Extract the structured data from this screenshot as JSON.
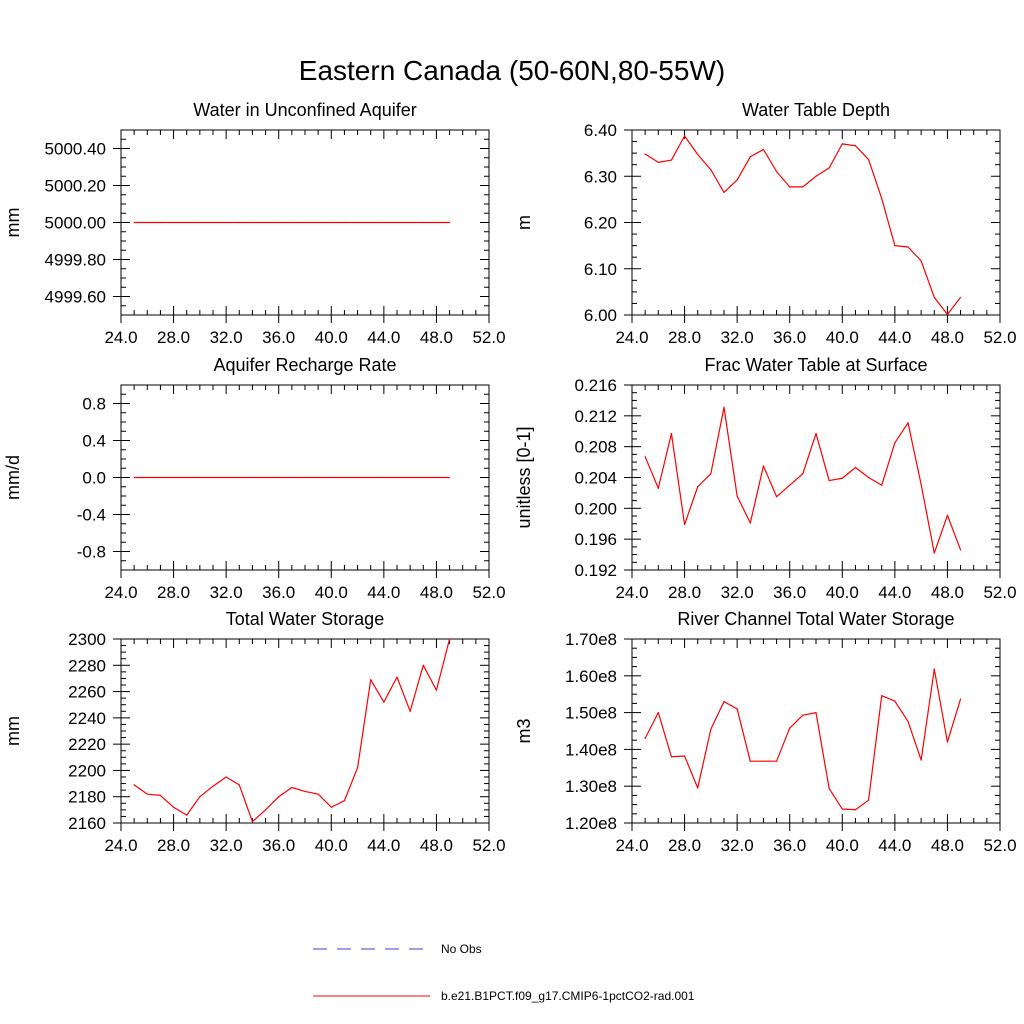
{
  "figure_title": "Eastern Canada (50-60N,80-55W)",
  "legend": {
    "entries": [
      {
        "label": "No Obs",
        "color": "#3b3bd6",
        "style": "dashed"
      },
      {
        "label": "b.e21.B1PCT.f09_g17.CMIP6-1pctCO2-rad.001",
        "color": "#ff0000",
        "style": "solid"
      }
    ]
  },
  "chart_data": [
    {
      "type": "line",
      "title": "Water in Unconfined Aquifer",
      "ylabel": "mm",
      "xlim": [
        24,
        52
      ],
      "ylim": [
        4999.5,
        5000.5
      ],
      "xticks": [
        24,
        28,
        32,
        36,
        40,
        44,
        48,
        52
      ],
      "xtick_labels": [
        "24.0",
        "28.0",
        "32.0",
        "36.0",
        "40.0",
        "44.0",
        "48.0",
        "52.0"
      ],
      "yticks": [
        4999.6,
        4999.8,
        5000.0,
        5000.2,
        5000.4
      ],
      "ytick_labels": [
        "4999.60",
        "4999.80",
        "5000.00",
        "5000.20",
        "5000.40"
      ],
      "x": [
        25,
        26,
        27,
        28,
        29,
        30,
        31,
        32,
        33,
        34,
        35,
        36,
        37,
        38,
        39,
        40,
        41,
        42,
        43,
        44,
        45,
        46,
        47,
        48,
        49
      ],
      "series": [
        {
          "color": "#ff0000",
          "values": [
            5000,
            5000,
            5000,
            5000,
            5000,
            5000,
            5000,
            5000,
            5000,
            5000,
            5000,
            5000,
            5000,
            5000,
            5000,
            5000,
            5000,
            5000,
            5000,
            5000,
            5000,
            5000,
            5000,
            5000,
            5000
          ]
        }
      ]
    },
    {
      "type": "line",
      "title": "Water Table Depth",
      "ylabel": "m",
      "xlim": [
        24,
        52
      ],
      "ylim": [
        6.0,
        6.4
      ],
      "xticks": [
        24,
        28,
        32,
        36,
        40,
        44,
        48,
        52
      ],
      "xtick_labels": [
        "24.0",
        "28.0",
        "32.0",
        "36.0",
        "40.0",
        "44.0",
        "48.0",
        "52.0"
      ],
      "yticks": [
        6.0,
        6.1,
        6.2,
        6.3,
        6.4
      ],
      "ytick_labels": [
        "6.00",
        "6.10",
        "6.20",
        "6.30",
        "6.40"
      ],
      "x": [
        25,
        26,
        27,
        28,
        29,
        30,
        31,
        32,
        33,
        34,
        35,
        36,
        37,
        38,
        39,
        40,
        41,
        42,
        43,
        44,
        45,
        46,
        47,
        48,
        49
      ],
      "series": [
        {
          "color": "#ff0000",
          "values": [
            6.348,
            6.33,
            6.335,
            6.387,
            6.347,
            6.314,
            6.265,
            6.292,
            6.342,
            6.358,
            6.31,
            6.277,
            6.277,
            6.3,
            6.318,
            6.37,
            6.366,
            6.336,
            6.252,
            6.15,
            6.147,
            6.117,
            6.038,
            6.001,
            6.038
          ]
        }
      ]
    },
    {
      "type": "line",
      "title": "Aquifer Recharge Rate",
      "ylabel": "mm/d",
      "xlim": [
        24,
        52
      ],
      "ylim": [
        -1.0,
        1.0
      ],
      "xticks": [
        24,
        28,
        32,
        36,
        40,
        44,
        48,
        52
      ],
      "xtick_labels": [
        "24.0",
        "28.0",
        "32.0",
        "36.0",
        "40.0",
        "44.0",
        "48.0",
        "52.0"
      ],
      "yticks": [
        -0.8,
        -0.4,
        0.0,
        0.4,
        0.8
      ],
      "ytick_labels": [
        "-0.8",
        "-0.4",
        "0.0",
        "0.4",
        "0.8"
      ],
      "x": [
        25,
        26,
        27,
        28,
        29,
        30,
        31,
        32,
        33,
        34,
        35,
        36,
        37,
        38,
        39,
        40,
        41,
        42,
        43,
        44,
        45,
        46,
        47,
        48,
        49
      ],
      "series": [
        {
          "color": "#ff0000",
          "values": [
            0,
            0,
            0,
            0,
            0,
            0,
            0,
            0,
            0,
            0,
            0,
            0,
            0,
            0,
            0,
            0,
            0,
            0,
            0,
            0,
            0,
            0,
            0,
            0,
            0
          ]
        }
      ]
    },
    {
      "type": "line",
      "title": "Frac Water Table at Surface",
      "ylabel": "unitless [0-1]",
      "xlim": [
        24,
        52
      ],
      "ylim": [
        0.192,
        0.216
      ],
      "xticks": [
        24,
        28,
        32,
        36,
        40,
        44,
        48,
        52
      ],
      "xtick_labels": [
        "24.0",
        "28.0",
        "32.0",
        "36.0",
        "40.0",
        "44.0",
        "48.0",
        "52.0"
      ],
      "yticks": [
        0.192,
        0.196,
        0.2,
        0.204,
        0.208,
        0.212,
        0.216
      ],
      "ytick_labels": [
        "0.192",
        "0.196",
        "0.200",
        "0.204",
        "0.208",
        "0.212",
        "0.216"
      ],
      "x": [
        25,
        26,
        27,
        28,
        29,
        30,
        31,
        32,
        33,
        34,
        35,
        36,
        37,
        38,
        39,
        40,
        41,
        42,
        43,
        44,
        45,
        46,
        47,
        48,
        49
      ],
      "series": [
        {
          "color": "#ff0000",
          "values": [
            0.2067,
            0.2026,
            0.2097,
            0.1979,
            0.2028,
            0.2045,
            0.2131,
            0.2016,
            0.1981,
            0.2055,
            0.2015,
            0.203,
            0.2045,
            0.2097,
            0.2036,
            0.2039,
            0.2053,
            0.204,
            0.203,
            0.2085,
            0.2111,
            0.2031,
            0.1942,
            0.1991,
            0.1946
          ]
        }
      ]
    },
    {
      "type": "line",
      "title": "Total Water Storage",
      "ylabel": "mm",
      "xlim": [
        24,
        52
      ],
      "ylim": [
        2160,
        2300
      ],
      "xticks": [
        24,
        28,
        32,
        36,
        40,
        44,
        48,
        52
      ],
      "xtick_labels": [
        "24.0",
        "28.0",
        "32.0",
        "36.0",
        "40.0",
        "44.0",
        "48.0",
        "52.0"
      ],
      "yticks": [
        2160,
        2180,
        2200,
        2220,
        2240,
        2260,
        2280,
        2300
      ],
      "ytick_labels": [
        "2160",
        "2180",
        "2200",
        "2220",
        "2240",
        "2260",
        "2280",
        "2300"
      ],
      "x": [
        25,
        26,
        27,
        28,
        29,
        30,
        31,
        32,
        33,
        34,
        35,
        36,
        37,
        38,
        39,
        40,
        41,
        42,
        43,
        44,
        45,
        46,
        47,
        48,
        49
      ],
      "series": [
        {
          "color": "#ff0000",
          "values": [
            2189,
            2182,
            2181,
            2172,
            2166,
            2180,
            2188,
            2195,
            2189,
            2161,
            2170,
            2180,
            2187,
            2184,
            2182,
            2172,
            2177,
            2202,
            2269,
            2252,
            2271,
            2245,
            2280,
            2261,
            2300
          ]
        }
      ]
    },
    {
      "type": "line",
      "title": "River Channel Total Water Storage",
      "ylabel": "m3",
      "xlim": [
        24,
        52
      ],
      "ylim": [
        120000000,
        170000000
      ],
      "xticks": [
        24,
        28,
        32,
        36,
        40,
        44,
        48,
        52
      ],
      "xtick_labels": [
        "24.0",
        "28.0",
        "32.0",
        "36.0",
        "40.0",
        "44.0",
        "48.0",
        "52.0"
      ],
      "yticks": [
        120000000,
        130000000,
        140000000,
        150000000,
        160000000,
        170000000
      ],
      "ytick_labels": [
        "1.20e8",
        "1.30e8",
        "1.40e8",
        "1.50e8",
        "1.60e8",
        "1.70e8"
      ],
      "x": [
        25,
        26,
        27,
        28,
        29,
        30,
        31,
        32,
        33,
        34,
        35,
        36,
        37,
        38,
        39,
        40,
        41,
        42,
        43,
        44,
        45,
        46,
        47,
        48,
        49
      ],
      "series": [
        {
          "color": "#ff0000",
          "values": [
            143000000,
            150000000,
            138000000,
            138200000,
            129500000,
            145500000,
            153000000,
            151000000,
            136800000,
            136800000,
            136800000,
            145800000,
            149300000,
            150000000,
            129400000,
            123800000,
            123600000,
            126200000,
            154600000,
            153100000,
            147600000,
            137100000,
            161800000,
            142000000,
            153700000
          ]
        }
      ]
    }
  ]
}
